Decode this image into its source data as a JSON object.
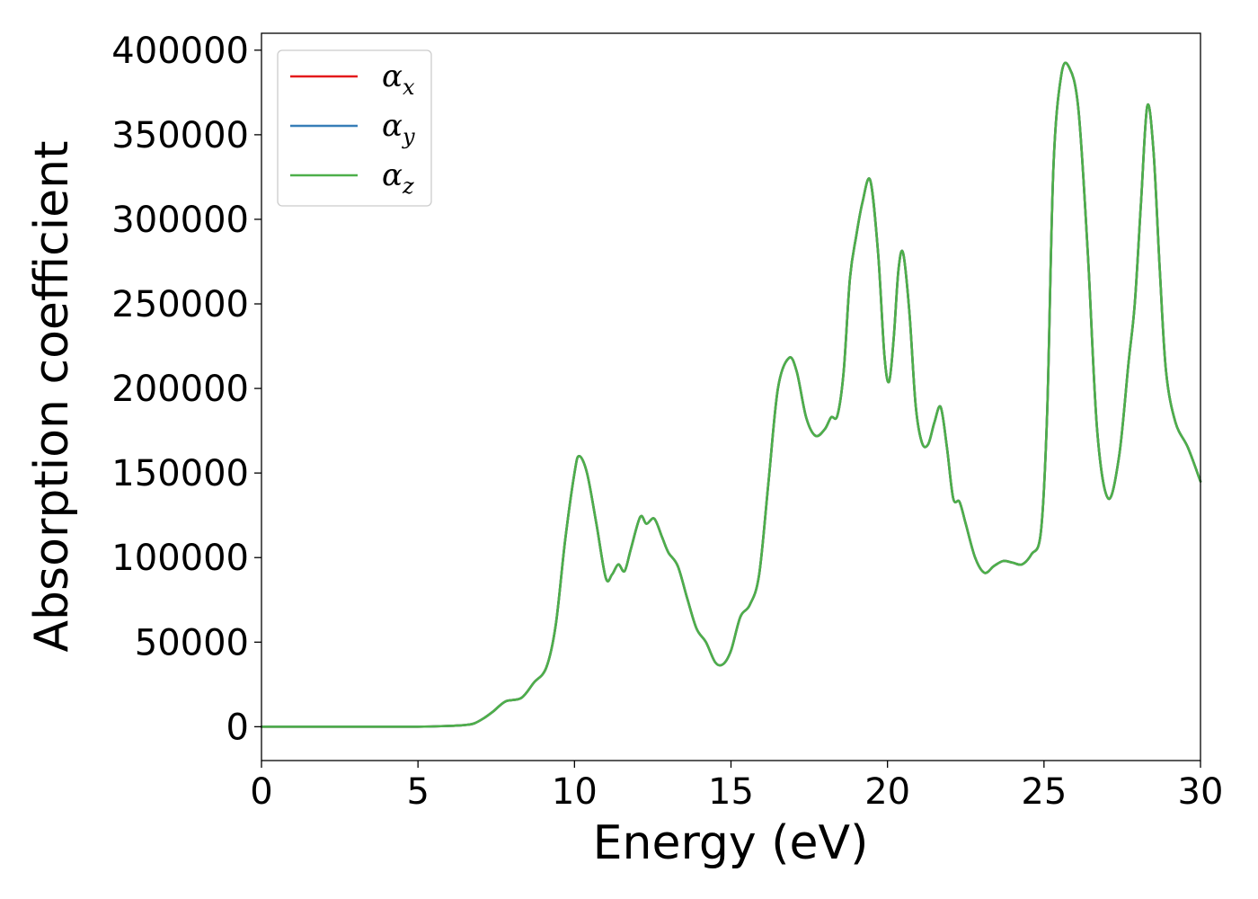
{
  "chart_data": {
    "type": "line",
    "xlabel": "Energy (eV)",
    "ylabel": "Absorption coefficient",
    "xlim": [
      0,
      30
    ],
    "ylim": [
      -20000,
      410000
    ],
    "xticks": [
      "0",
      "5",
      "10",
      "15",
      "20",
      "25",
      "30"
    ],
    "yticks": [
      "0",
      "50000",
      "100000",
      "150000",
      "200000",
      "250000",
      "300000",
      "350000",
      "400000"
    ],
    "grid": false,
    "legend_position": "top-left",
    "series": [
      {
        "name": "α",
        "subscript": "x",
        "color": "#e41a1c",
        "x": [
          0,
          3,
          5,
          6,
          6.5,
          6.8,
          7.1,
          7.4,
          7.8,
          8.3,
          8.7,
          9.1,
          9.4,
          9.7,
          10.0,
          10.15,
          10.4,
          10.7,
          11.0,
          11.2,
          11.4,
          11.6,
          11.8,
          12.1,
          12.3,
          12.55,
          12.8,
          13.0,
          13.3,
          13.6,
          13.9,
          14.2,
          14.5,
          14.75,
          15.0,
          15.3,
          15.6,
          15.9,
          16.2,
          16.5,
          16.85,
          17.1,
          17.4,
          17.7,
          18.0,
          18.2,
          18.4,
          18.6,
          18.8,
          19.0,
          19.2,
          19.45,
          19.7,
          19.9,
          20.05,
          20.2,
          20.35,
          20.5,
          20.7,
          20.9,
          21.1,
          21.3,
          21.5,
          21.7,
          21.9,
          22.1,
          22.3,
          22.5,
          22.8,
          23.1,
          23.4,
          23.7,
          24.0,
          24.3,
          24.6,
          24.9,
          25.1,
          25.3,
          25.55,
          25.8,
          26.1,
          26.4,
          26.7,
          27.05,
          27.4,
          27.7,
          27.9,
          28.1,
          28.3,
          28.5,
          28.7,
          28.9,
          29.2,
          29.6,
          30.0
        ],
        "y": [
          0,
          0,
          0,
          500,
          1000,
          2000,
          5000,
          9000,
          15000,
          17000,
          26000,
          35000,
          60000,
          110000,
          150000,
          160000,
          150000,
          120000,
          88000,
          90000,
          96000,
          92000,
          105000,
          124000,
          120000,
          123000,
          112000,
          103000,
          95000,
          76000,
          58000,
          50000,
          38000,
          37000,
          45000,
          65000,
          72000,
          90000,
          145000,
          200000,
          218000,
          210000,
          183000,
          172000,
          176000,
          183000,
          184000,
          210000,
          265000,
          290000,
          310000,
          323000,
          280000,
          220000,
          204000,
          230000,
          270000,
          280000,
          245000,
          190000,
          168000,
          167000,
          180000,
          189000,
          165000,
          135000,
          133000,
          120000,
          100000,
          91000,
          95000,
          98000,
          97000,
          96000,
          102000,
          115000,
          185000,
          330000,
          385000,
          390000,
          365000,
          280000,
          175000,
          135000,
          160000,
          215000,
          250000,
          310000,
          367000,
          340000,
          270000,
          210000,
          180000,
          165000,
          145000
        ]
      },
      {
        "name": "α",
        "subscript": "y",
        "color": "#377eb8",
        "x": [
          0,
          3,
          5,
          6,
          6.5,
          6.8,
          7.1,
          7.4,
          7.8,
          8.3,
          8.7,
          9.1,
          9.4,
          9.7,
          10.0,
          10.15,
          10.4,
          10.7,
          11.0,
          11.2,
          11.4,
          11.6,
          11.8,
          12.1,
          12.3,
          12.55,
          12.8,
          13.0,
          13.3,
          13.6,
          13.9,
          14.2,
          14.5,
          14.75,
          15.0,
          15.3,
          15.6,
          15.9,
          16.2,
          16.5,
          16.85,
          17.1,
          17.4,
          17.7,
          18.0,
          18.2,
          18.4,
          18.6,
          18.8,
          19.0,
          19.2,
          19.45,
          19.7,
          19.9,
          20.05,
          20.2,
          20.35,
          20.5,
          20.7,
          20.9,
          21.1,
          21.3,
          21.5,
          21.7,
          21.9,
          22.1,
          22.3,
          22.5,
          22.8,
          23.1,
          23.4,
          23.7,
          24.0,
          24.3,
          24.6,
          24.9,
          25.1,
          25.3,
          25.55,
          25.8,
          26.1,
          26.4,
          26.7,
          27.05,
          27.4,
          27.7,
          27.9,
          28.1,
          28.3,
          28.5,
          28.7,
          28.9,
          29.2,
          29.6,
          30.0
        ],
        "y": [
          0,
          0,
          0,
          500,
          1000,
          2000,
          5000,
          9000,
          15000,
          17000,
          26000,
          35000,
          60000,
          110000,
          150000,
          160000,
          150000,
          120000,
          88000,
          90000,
          96000,
          92000,
          105000,
          124000,
          120000,
          123000,
          112000,
          103000,
          95000,
          76000,
          58000,
          50000,
          38000,
          37000,
          45000,
          65000,
          72000,
          90000,
          145000,
          200000,
          218000,
          210000,
          183000,
          172000,
          176000,
          183000,
          184000,
          210000,
          265000,
          290000,
          310000,
          323000,
          280000,
          220000,
          204000,
          230000,
          270000,
          280000,
          245000,
          190000,
          168000,
          167000,
          180000,
          189000,
          165000,
          135000,
          133000,
          120000,
          100000,
          91000,
          95000,
          98000,
          97000,
          96000,
          102000,
          115000,
          185000,
          330000,
          385000,
          390000,
          365000,
          280000,
          175000,
          135000,
          160000,
          215000,
          250000,
          310000,
          367000,
          340000,
          270000,
          210000,
          180000,
          165000,
          145000
        ]
      },
      {
        "name": "α",
        "subscript": "z",
        "color": "#4daf4a",
        "x": [
          0,
          3,
          5,
          6,
          6.5,
          6.8,
          7.1,
          7.4,
          7.8,
          8.3,
          8.7,
          9.1,
          9.4,
          9.7,
          10.0,
          10.15,
          10.4,
          10.7,
          11.0,
          11.2,
          11.4,
          11.6,
          11.8,
          12.1,
          12.3,
          12.55,
          12.8,
          13.0,
          13.3,
          13.6,
          13.9,
          14.2,
          14.5,
          14.75,
          15.0,
          15.3,
          15.6,
          15.9,
          16.2,
          16.5,
          16.85,
          17.1,
          17.4,
          17.7,
          18.0,
          18.2,
          18.4,
          18.6,
          18.8,
          19.0,
          19.2,
          19.45,
          19.7,
          19.9,
          20.05,
          20.2,
          20.35,
          20.5,
          20.7,
          20.9,
          21.1,
          21.3,
          21.5,
          21.7,
          21.9,
          22.1,
          22.3,
          22.5,
          22.8,
          23.1,
          23.4,
          23.7,
          24.0,
          24.3,
          24.6,
          24.9,
          25.1,
          25.3,
          25.55,
          25.8,
          26.1,
          26.4,
          26.7,
          27.05,
          27.4,
          27.7,
          27.9,
          28.1,
          28.3,
          28.5,
          28.7,
          28.9,
          29.2,
          29.6,
          30.0
        ],
        "y": [
          0,
          0,
          0,
          500,
          1000,
          2000,
          5000,
          9000,
          15000,
          17000,
          26000,
          35000,
          60000,
          110000,
          150000,
          160000,
          150000,
          120000,
          88000,
          90000,
          96000,
          92000,
          105000,
          124000,
          120000,
          123000,
          112000,
          103000,
          95000,
          76000,
          58000,
          50000,
          38000,
          37000,
          45000,
          65000,
          72000,
          90000,
          145000,
          200000,
          218000,
          210000,
          183000,
          172000,
          176000,
          183000,
          184000,
          210000,
          265000,
          290000,
          310000,
          323000,
          280000,
          220000,
          204000,
          230000,
          270000,
          280000,
          245000,
          190000,
          168000,
          167000,
          180000,
          189000,
          165000,
          135000,
          133000,
          120000,
          100000,
          91000,
          95000,
          98000,
          97000,
          96000,
          102000,
          115000,
          185000,
          330000,
          385000,
          390000,
          365000,
          280000,
          175000,
          135000,
          160000,
          215000,
          250000,
          310000,
          367000,
          340000,
          270000,
          210000,
          180000,
          165000,
          145000
        ]
      }
    ]
  }
}
